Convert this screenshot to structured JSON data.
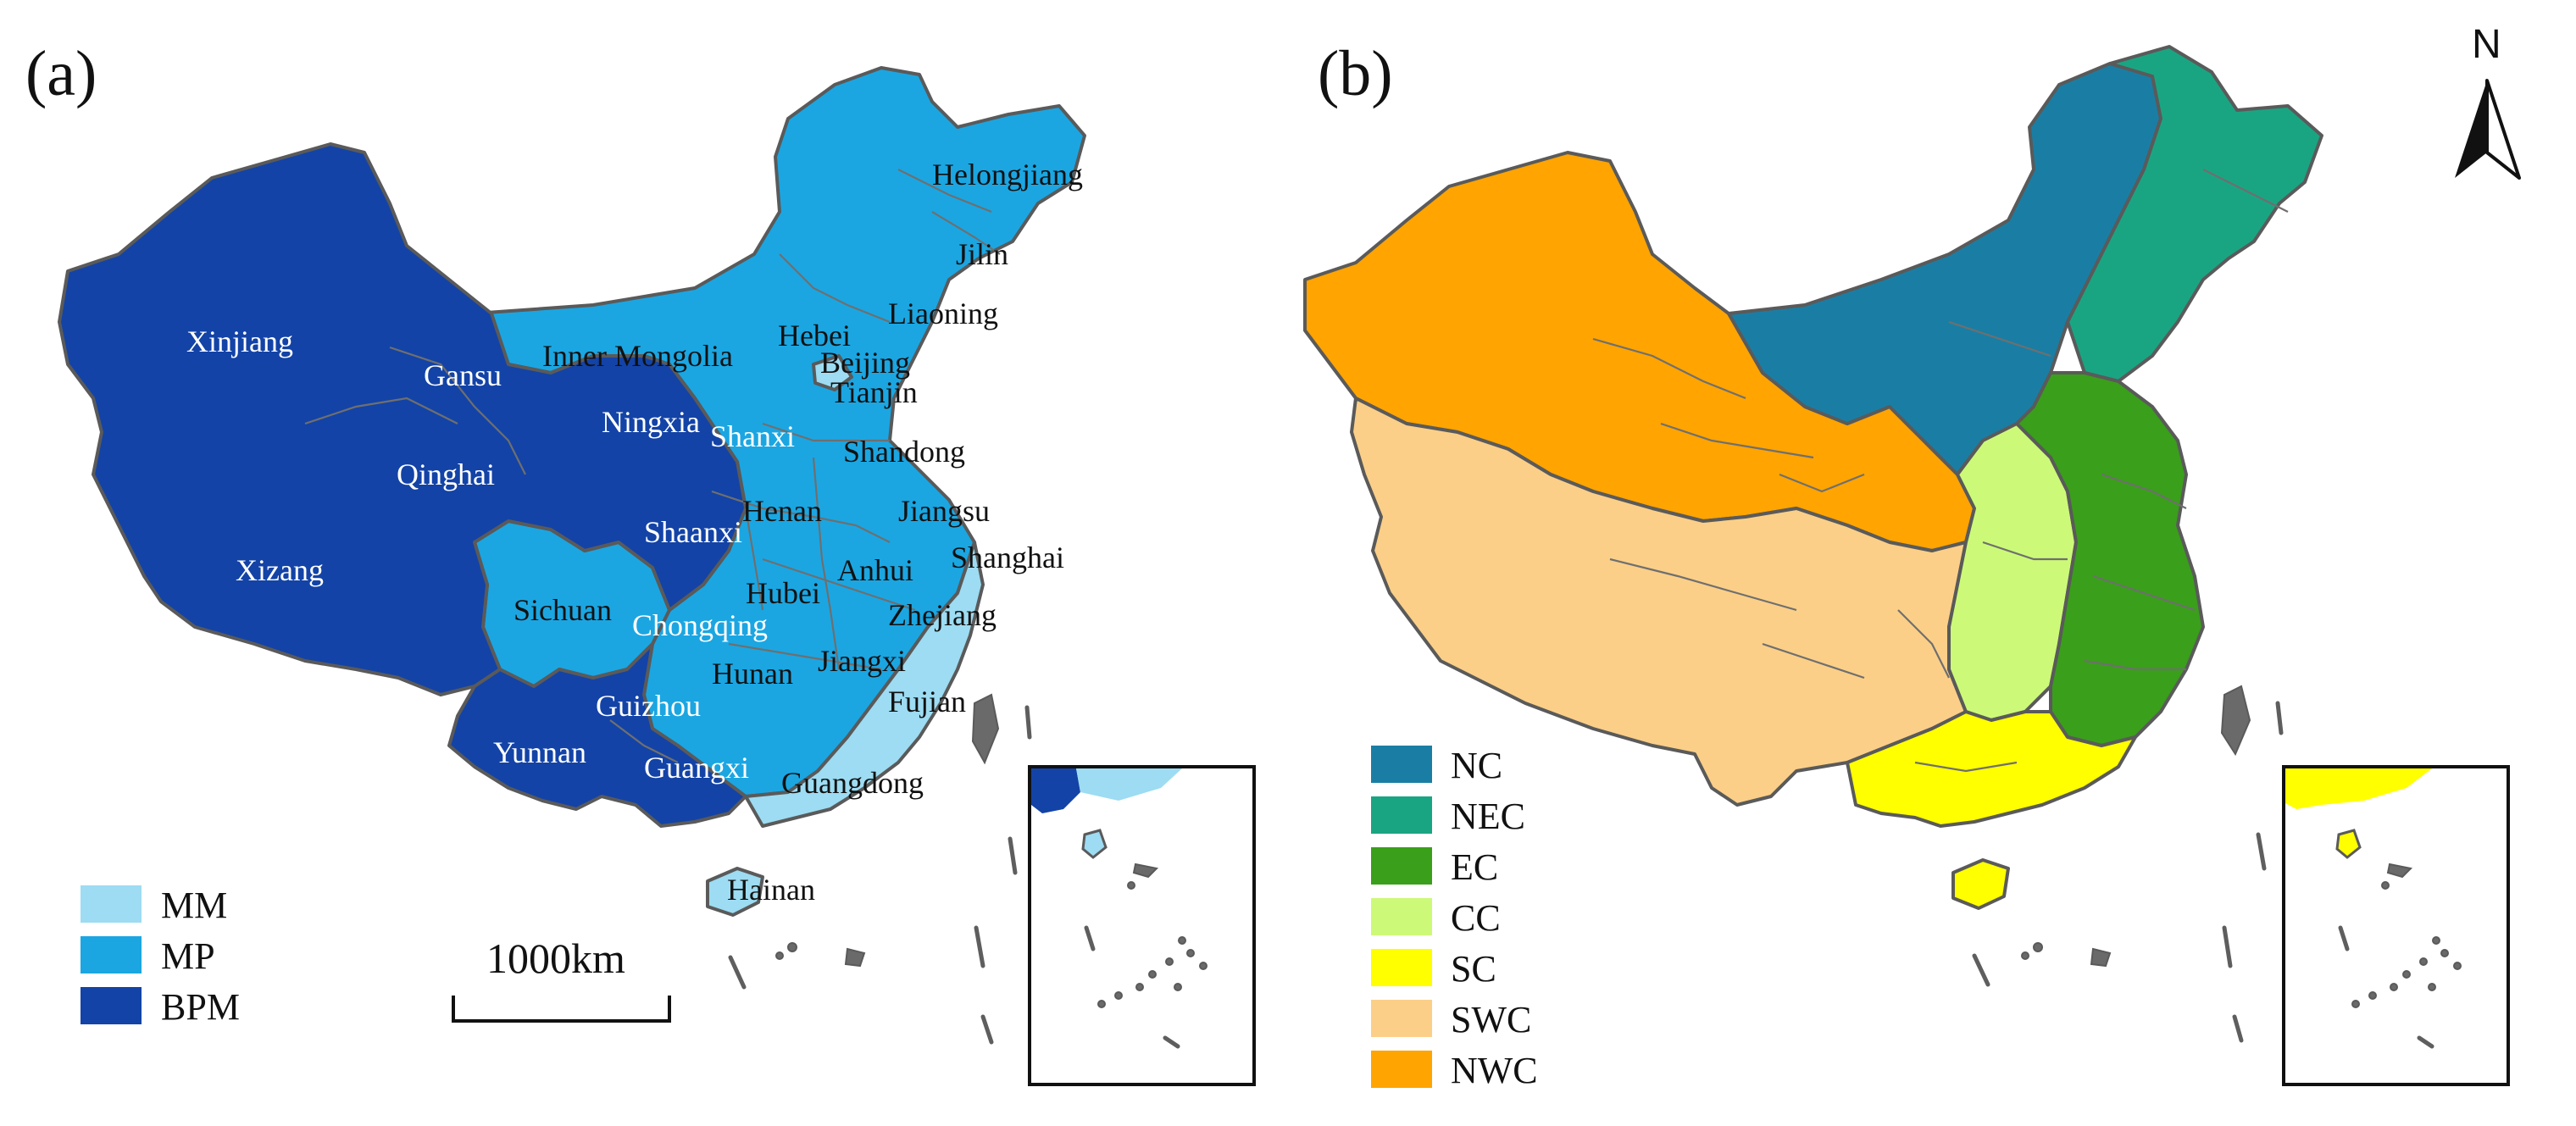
{
  "colors": {
    "MM": "#9ddcf2",
    "MP": "#1ba6e2",
    "BPM": "#1343a6",
    "NC": "#1a7ea4",
    "NEC": "#1aa582",
    "EC": "#3a9f1a",
    "CC": "#ccfa78",
    "SC": "#ffff00",
    "SWC": "#fbcf88",
    "NWC": "#ffa400",
    "outline": "#5a5a5a"
  },
  "panel_a": {
    "letter": "(a)",
    "provinces": [
      {
        "name": "Xinjiang",
        "class": "BPM"
      },
      {
        "name": "Gansu",
        "class": "BPM"
      },
      {
        "name": "Inner Mongolia",
        "class": "MP"
      },
      {
        "name": "Helongjiang",
        "class": "MP"
      },
      {
        "name": "Jilin",
        "class": "MP"
      },
      {
        "name": "Liaoning",
        "class": "MP"
      },
      {
        "name": "Hebei",
        "class": "MP"
      },
      {
        "name": "Beijing",
        "class": "MM"
      },
      {
        "name": "Tianjin",
        "class": "MM"
      },
      {
        "name": "Ningxia",
        "class": "BPM"
      },
      {
        "name": "Shanxi",
        "class": "BPM"
      },
      {
        "name": "Qinghai",
        "class": "BPM"
      },
      {
        "name": "Shandong",
        "class": "MP"
      },
      {
        "name": "Henan",
        "class": "MP"
      },
      {
        "name": "Jiangsu",
        "class": "MP"
      },
      {
        "name": "Shaanxi",
        "class": "BPM"
      },
      {
        "name": "Shanghai",
        "class": "MM"
      },
      {
        "name": "Xizang",
        "class": "BPM"
      },
      {
        "name": "Anhui",
        "class": "MP"
      },
      {
        "name": "Sichuan",
        "class": "MP"
      },
      {
        "name": "Hubei",
        "class": "MP"
      },
      {
        "name": "Chongqing",
        "class": "MP"
      },
      {
        "name": "Zhejiang",
        "class": "MM"
      },
      {
        "name": "Hunan",
        "class": "MP"
      },
      {
        "name": "Jiangxi",
        "class": "MP"
      },
      {
        "name": "Guizhou",
        "class": "BPM"
      },
      {
        "name": "Fujian",
        "class": "MM"
      },
      {
        "name": "Yunnan",
        "class": "BPM"
      },
      {
        "name": "Guangxi",
        "class": "BPM"
      },
      {
        "name": "Guangdong",
        "class": "MM"
      },
      {
        "name": "Hainan",
        "class": "MM"
      }
    ],
    "legend": [
      "MM",
      "MP",
      "BPM"
    ],
    "scale_bar": "1000km"
  },
  "panel_b": {
    "letter": "(b)",
    "legend": [
      "NC",
      "NEC",
      "EC",
      "CC",
      "SC",
      "SWC",
      "NWC"
    ],
    "north_arrow": "N"
  }
}
